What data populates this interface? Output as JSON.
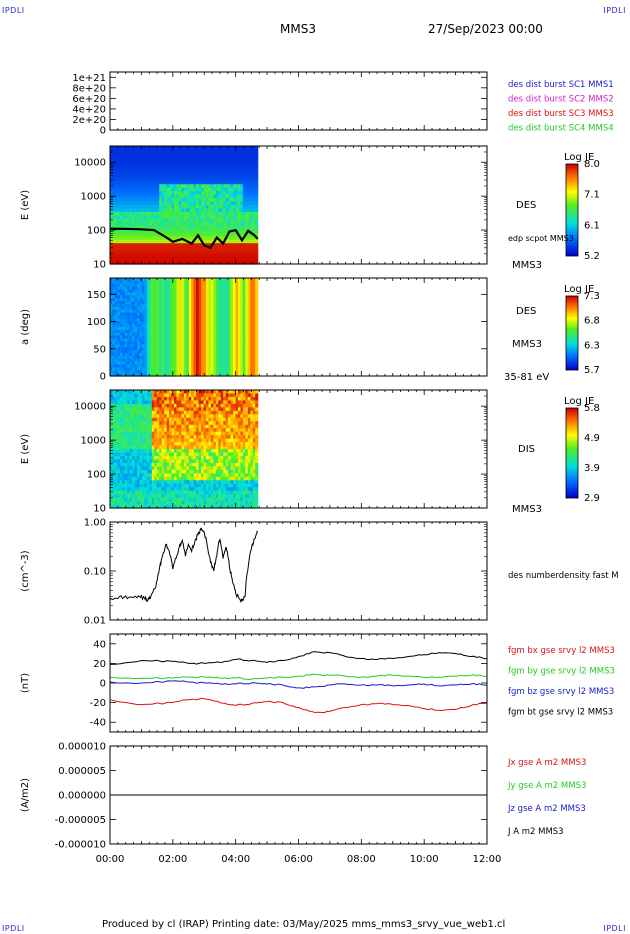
{
  "header": {
    "corner_labels": [
      "IPDLI",
      "IPDLI",
      "IPDLI",
      "IPDLI"
    ],
    "spacecraft": "MMS3",
    "datetime": "27/Sep/2023 00:00"
  },
  "footer": {
    "text": "Produced by cl (IRAP)   Printing date: 03/May/2025   mms_mms3_srvy_vue_web1.cl"
  },
  "colors": {
    "blue": "#1a1acc",
    "magenta": "#cc22cc",
    "red": "#dd1111",
    "green": "#22cc22",
    "black": "#000000"
  },
  "chart_data": [
    {
      "id": "burst",
      "type": "line",
      "ylabel": "",
      "yticks": [
        "1e+21",
        "8e+20",
        "6e+20",
        "4e+20",
        "2e+20",
        "0"
      ],
      "ylim": [
        0,
        1.1e+21
      ],
      "legend": [
        {
          "name": "des dist burst SC1 MMS1",
          "color": "#1a1acc"
        },
        {
          "name": "des dist burst SC2 MMS2",
          "color": "#cc22cc"
        },
        {
          "name": "des dist burst SC3 MMS3",
          "color": "#dd1111"
        },
        {
          "name": "des dist burst SC4 MMS4",
          "color": "#22cc22"
        }
      ],
      "series": [
        {
          "name": "baseline",
          "style": "dashed",
          "x": [
            0,
            12
          ],
          "values": [
            0,
            0
          ]
        }
      ]
    },
    {
      "id": "des_energy",
      "type": "heatmap",
      "ylabel": "E (eV)",
      "yscale": "log",
      "yticks": [
        "10000",
        "1000",
        "100",
        "10"
      ],
      "ylim": [
        10,
        30000
      ],
      "data_extent_hours": [
        0,
        4.7
      ],
      "right_labels": [
        "DES",
        "edp scpot MMS3",
        "MMS3"
      ],
      "colorbar": {
        "title": "Log JE",
        "ticks": [
          "8.0",
          "7.1",
          "6.1",
          "5.2"
        ],
        "range": [
          5.2,
          8.0
        ]
      },
      "overlay_series": {
        "name": "edp scpot MMS3",
        "x": [
          0,
          0.5,
          1.0,
          1.4,
          1.8,
          2.0,
          2.3,
          2.6,
          2.8,
          3.0,
          3.2,
          3.4,
          3.6,
          3.8,
          4.0,
          4.2,
          4.4,
          4.6,
          4.7
        ],
        "values": [
          110,
          108,
          105,
          100,
          60,
          45,
          55,
          40,
          70,
          35,
          30,
          60,
          40,
          90,
          100,
          50,
          95,
          70,
          55
        ]
      }
    },
    {
      "id": "des_pitch",
      "type": "heatmap",
      "ylabel": "a (deg)",
      "yticks": [
        "150",
        "100",
        "50",
        "0"
      ],
      "ylim": [
        0,
        180
      ],
      "data_extent_hours": [
        0,
        4.7
      ],
      "right_labels": [
        "DES",
        "MMS3",
        "35-81 eV"
      ],
      "colorbar": {
        "title": "Log JE",
        "ticks": [
          "7.3",
          "6.8",
          "6.3",
          "5.7"
        ],
        "range": [
          5.7,
          7.3
        ]
      }
    },
    {
      "id": "dis_energy",
      "type": "heatmap",
      "ylabel": "E (eV)",
      "yscale": "log",
      "yticks": [
        "10000",
        "1000",
        "100",
        "10"
      ],
      "ylim": [
        10,
        30000
      ],
      "data_extent_hours": [
        0,
        4.7
      ],
      "right_labels": [
        "DIS",
        "MMS3"
      ],
      "colorbar": {
        "title": "Log JE",
        "ticks": [
          "5.8",
          "4.9",
          "3.9",
          "2.9"
        ],
        "range": [
          2.9,
          5.8
        ]
      }
    },
    {
      "id": "density",
      "type": "line",
      "ylabel": "(cm^-3)",
      "yscale": "log",
      "yticks": [
        "1.00",
        "0.10",
        "0.01"
      ],
      "ylim": [
        0.01,
        1.0
      ],
      "legend": [
        {
          "name": "des numberdensity fast M",
          "color": "#000000"
        }
      ],
      "series": [
        {
          "name": "des numberdensity fast M",
          "x": [
            0,
            0.3,
            0.6,
            0.9,
            1.1,
            1.2,
            1.3,
            1.45,
            1.55,
            1.65,
            1.8,
            1.9,
            2.0,
            2.1,
            2.2,
            2.3,
            2.4,
            2.5,
            2.6,
            2.7,
            2.8,
            2.9,
            3.0,
            3.1,
            3.2,
            3.3,
            3.4,
            3.5,
            3.6,
            3.7,
            3.8,
            3.9,
            4.0,
            4.1,
            4.2,
            4.3,
            4.4,
            4.5,
            4.6,
            4.7
          ],
          "values": [
            0.028,
            0.03,
            0.029,
            0.031,
            0.028,
            0.025,
            0.03,
            0.045,
            0.09,
            0.18,
            0.35,
            0.22,
            0.11,
            0.18,
            0.3,
            0.42,
            0.2,
            0.35,
            0.25,
            0.4,
            0.55,
            0.7,
            0.62,
            0.3,
            0.15,
            0.1,
            0.2,
            0.45,
            0.18,
            0.3,
            0.12,
            0.06,
            0.035,
            0.028,
            0.025,
            0.03,
            0.12,
            0.28,
            0.45,
            0.62
          ]
        }
      ]
    },
    {
      "id": "fgm",
      "type": "line",
      "ylabel": "(nT)",
      "yticks": [
        "40",
        "20",
        "0",
        "-20",
        "-40"
      ],
      "ylim": [
        -50,
        50
      ],
      "legend": [
        {
          "name": "fgm bx gse srvy l2 MMS3",
          "color": "#dd1111"
        },
        {
          "name": "fgm by gse srvy l2 MMS3",
          "color": "#22cc22"
        },
        {
          "name": "fgm bz gse srvy l2 MMS3",
          "color": "#1a1acc"
        },
        {
          "name": "fgm bt gse srvy l2 MMS3",
          "color": "#000000"
        }
      ],
      "series": [
        {
          "name": "fgm bx gse srvy l2 MMS3",
          "color": "#dd1111",
          "x": [
            0,
            1,
            2,
            2.5,
            3,
            3.5,
            4,
            4.5,
            5,
            5.5,
            6,
            6.5,
            7,
            7.5,
            8,
            8.5,
            9,
            9.5,
            10,
            10.5,
            11,
            11.5,
            12
          ],
          "values": [
            -17,
            -22,
            -20,
            -17,
            -16,
            -20,
            -23,
            -21,
            -19,
            -20,
            -25,
            -30,
            -29,
            -25,
            -22,
            -21,
            -22,
            -23,
            -26,
            -28,
            -27,
            -23,
            -20
          ]
        },
        {
          "name": "fgm by gse srvy l2 MMS3",
          "color": "#22cc22",
          "x": [
            0,
            1,
            2,
            2.5,
            3,
            3.5,
            4,
            4.5,
            5,
            5.5,
            6,
            6.5,
            7,
            7.5,
            8,
            8.5,
            9,
            9.5,
            10,
            10.5,
            11,
            11.5,
            12
          ],
          "values": [
            6,
            5,
            5,
            6,
            6,
            5,
            5,
            4,
            5,
            6,
            7,
            9,
            8,
            7,
            6,
            7,
            8,
            7,
            6,
            6,
            7,
            8,
            7
          ]
        },
        {
          "name": "fgm bz gse srvy l2 MMS3",
          "color": "#1a1acc",
          "x": [
            0,
            1,
            2,
            2.5,
            3,
            3.5,
            4,
            4.5,
            5,
            5.5,
            6,
            6.5,
            7,
            7.5,
            8,
            8.5,
            9,
            9.5,
            10,
            10.5,
            11,
            11.5,
            12
          ],
          "values": [
            1,
            0,
            2,
            1,
            0,
            -1,
            -1,
            0,
            -1,
            -2,
            -5,
            -4,
            -2,
            -1,
            -2,
            -2,
            -3,
            -2,
            -1,
            -3,
            -2,
            -1,
            -2
          ]
        },
        {
          "name": "fgm bt gse srvy l2 MMS3",
          "color": "#000000",
          "x": [
            0,
            1,
            2,
            2.5,
            3,
            3.5,
            4,
            4.5,
            5,
            5.5,
            6,
            6.5,
            7,
            7.5,
            8,
            8.5,
            9,
            9.5,
            10,
            10.5,
            11,
            11.5,
            12
          ],
          "values": [
            19,
            23,
            22,
            20,
            20,
            21,
            24,
            23,
            21,
            23,
            27,
            32,
            31,
            27,
            25,
            24,
            25,
            27,
            29,
            31,
            30,
            27,
            25
          ]
        }
      ]
    },
    {
      "id": "current",
      "type": "line",
      "ylabel": "(A/m2)",
      "yticks": [
        "0.000010",
        "0.000005",
        "0.000000",
        "-0.000005",
        "-0.000010"
      ],
      "ylim": [
        -1e-05,
        1e-05
      ],
      "xticks": [
        "00:00",
        "02:00",
        "04:00",
        "06:00",
        "08:00",
        "10:00",
        "12:00"
      ],
      "legend": [
        {
          "name": "Jx gse A m2 MMS3",
          "color": "#dd1111"
        },
        {
          "name": "Jy gse A m2 MMS3",
          "color": "#22cc22"
        },
        {
          "name": "Jz gse A m2 MMS3",
          "color": "#1a1acc"
        },
        {
          "name": "J A m2 MMS3",
          "color": "#000000"
        }
      ],
      "series": [
        {
          "name": "J A m2 MMS3",
          "x": [
            0,
            12
          ],
          "values": [
            0,
            0
          ]
        }
      ]
    }
  ]
}
